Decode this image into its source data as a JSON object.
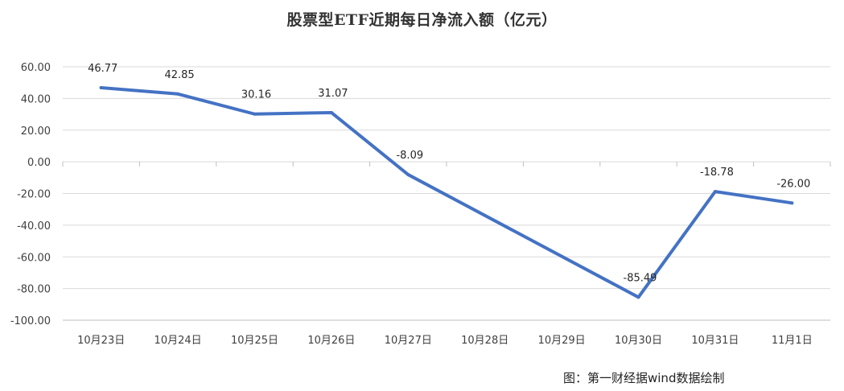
{
  "chart_data": {
    "type": "line",
    "title": "股票型ETF近期每日净流入额（亿元）",
    "categories": [
      "10月23日",
      "10月24日",
      "10月25日",
      "10月26日",
      "10月27日",
      "10月28日",
      "10月29日",
      "10月30日",
      "10月31日",
      "11月1日"
    ],
    "series": [
      {
        "values": [
          46.77,
          42.85,
          30.16,
          31.07,
          -8.09,
          null,
          null,
          -85.49,
          -18.78,
          -26.0
        ],
        "labels": [
          "46.77",
          "42.85",
          "30.16",
          "31.07",
          "-8.09",
          "",
          "",
          "-85.49",
          "-18.78",
          "-26.00"
        ],
        "color": "#4472C4"
      }
    ],
    "yticks": [
      "60.00",
      "40.00",
      "20.00",
      "0.00",
      "-20.00",
      "-40.00",
      "-60.00",
      "-80.00",
      "-100.00"
    ],
    "ylim": [
      -100,
      60
    ],
    "grid": true,
    "source": "图：第一财经据wind数据绘制"
  }
}
